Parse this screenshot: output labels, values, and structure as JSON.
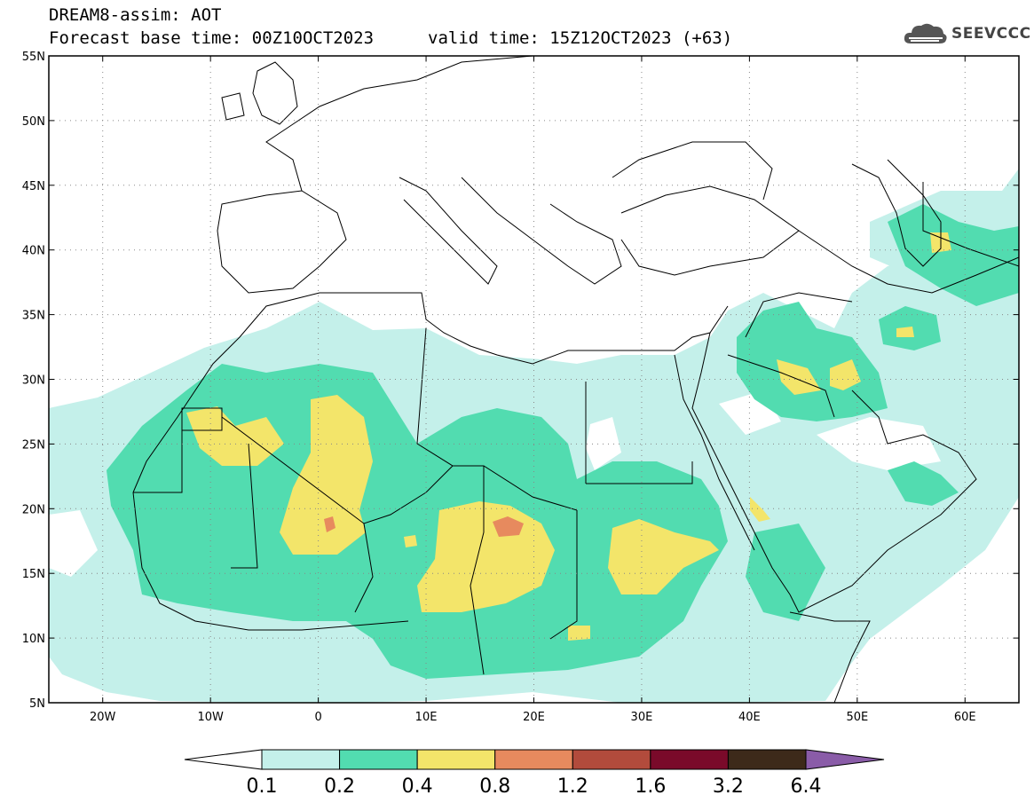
{
  "title": {
    "line1": "DREAM8-assim: AOT",
    "line2": "Forecast base time: 00Z10OCT2023",
    "valid": "valid time: 15Z12OCT2023 (+63)"
  },
  "logo": {
    "icon": "cloud-icon",
    "text": "SEEVCCC"
  },
  "axes": {
    "lat_ticks": [
      "55N",
      "50N",
      "45N",
      "40N",
      "35N",
      "30N",
      "25N",
      "20N",
      "15N",
      "10N",
      "5N"
    ],
    "lat_values": [
      55,
      50,
      45,
      40,
      35,
      30,
      25,
      20,
      15,
      10,
      5
    ],
    "lon_ticks": [
      "20W",
      "10W",
      "0",
      "10E",
      "20E",
      "30E",
      "40E",
      "50E",
      "60E"
    ],
    "lon_values": [
      -20,
      -10,
      0,
      10,
      20,
      30,
      40,
      50,
      60
    ],
    "lon_range": [
      -25,
      65
    ],
    "lat_range": [
      5,
      55
    ],
    "grid": true
  },
  "legend": {
    "labels": [
      "0.1",
      "0.2",
      "0.4",
      "0.8",
      "1.2",
      "1.6",
      "3.2",
      "6.4"
    ],
    "colors": [
      "#ffffff",
      "#c4f0ea",
      "#52dcb0",
      "#f3e56a",
      "#e78a5e",
      "#b24b3c",
      "#7a0a2a",
      "#3d2a1a",
      "#8a5ca8"
    ]
  }
}
